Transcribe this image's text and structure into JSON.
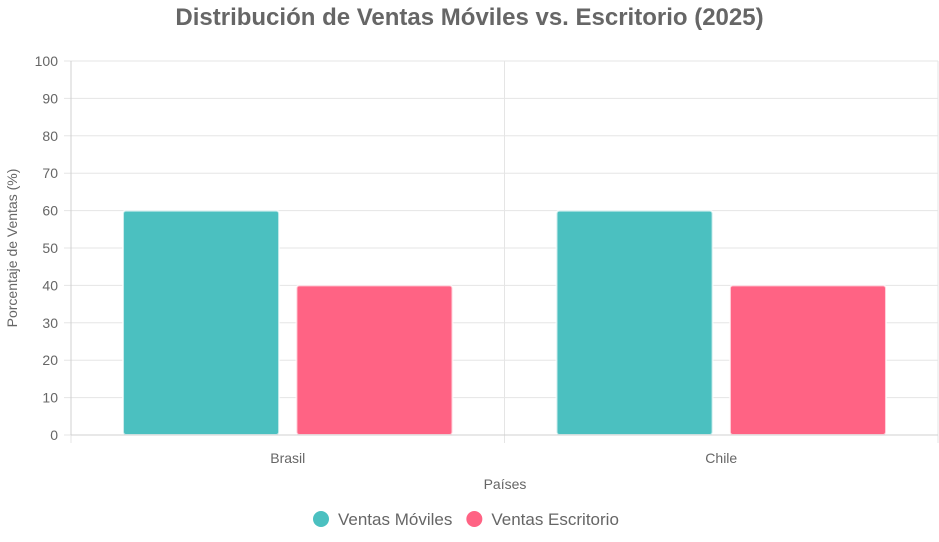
{
  "chart_data": {
    "type": "bar",
    "title": "Distribución de Ventas Móviles vs. Escritorio (2025)",
    "xlabel": "Países",
    "ylabel": "Porcentaje de Ventas (%)",
    "categories": [
      "Brasil",
      "Chile"
    ],
    "series": [
      {
        "name": "Ventas Móviles",
        "values": [
          60,
          60
        ],
        "color": "#4BC0C0"
      },
      {
        "name": "Ventas Escritorio",
        "values": [
          40,
          40
        ],
        "color": "#FF6384"
      }
    ],
    "ylim": [
      0,
      100
    ],
    "yticks": [
      0,
      10,
      20,
      30,
      40,
      50,
      60,
      70,
      80,
      90,
      100
    ],
    "grid": true,
    "legend_position": "bottom"
  }
}
